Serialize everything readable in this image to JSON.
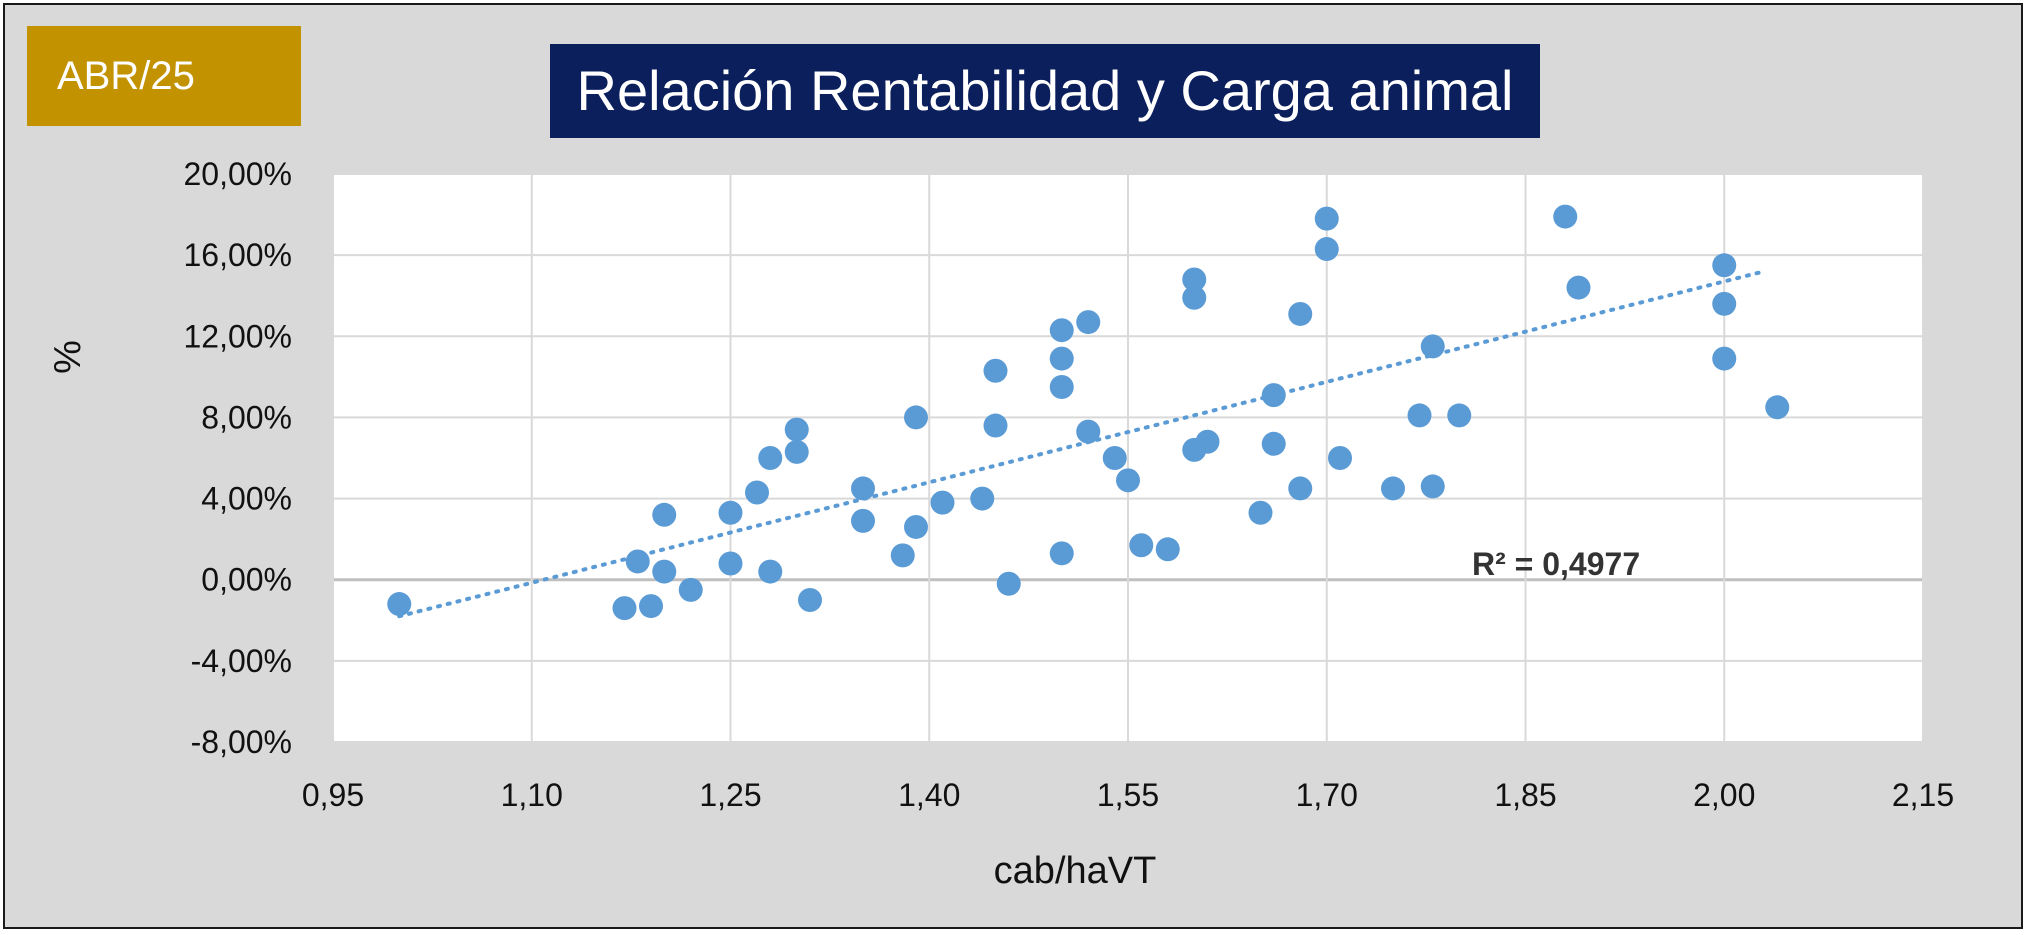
{
  "badge": {
    "label": "ABR/25"
  },
  "title": "Relación Rentabilidad y Carga animal",
  "colors": {
    "frame_bg": "#d9d9d9",
    "plot_bg": "#ffffff",
    "grid": "#d9d9d9",
    "zero_line": "#bfbfbf",
    "points": "#5b9bd5",
    "trendline": "#5b9bd5",
    "badge_bg": "#c39200",
    "title_bg": "#0b1f5c"
  },
  "chart_data": {
    "type": "scatter",
    "title": "Relación Rentabilidad y Carga animal",
    "xlabel": "cab/haVT",
    "ylabel": "%",
    "xlim": [
      0.95,
      2.15
    ],
    "ylim": [
      -8,
      20
    ],
    "x_ticks": [
      0.95,
      1.1,
      1.25,
      1.4,
      1.55,
      1.7,
      1.85,
      2.0,
      2.15
    ],
    "x_tick_labels": [
      "0,95",
      "1,10",
      "1,25",
      "1,40",
      "1,55",
      "1,70",
      "1,85",
      "2,00",
      "2,15"
    ],
    "y_ticks": [
      -8,
      -4,
      0,
      4,
      8,
      12,
      16,
      20
    ],
    "y_tick_labels": [
      "-8,00%",
      "-4,00%",
      "0,00%",
      "4,00%",
      "8,00%",
      "12,00%",
      "16,00%",
      "20,00%"
    ],
    "grid": true,
    "legend": "none",
    "points": [
      [
        1.0,
        -1.2
      ],
      [
        1.17,
        -1.4
      ],
      [
        1.18,
        0.9
      ],
      [
        1.19,
        -1.3
      ],
      [
        1.2,
        3.2
      ],
      [
        1.2,
        0.4
      ],
      [
        1.22,
        -0.5
      ],
      [
        1.25,
        0.8
      ],
      [
        1.25,
        3.3
      ],
      [
        1.27,
        4.3
      ],
      [
        1.28,
        6.0
      ],
      [
        1.28,
        0.4
      ],
      [
        1.3,
        6.3
      ],
      [
        1.3,
        7.4
      ],
      [
        1.31,
        -1.0
      ],
      [
        1.35,
        4.5
      ],
      [
        1.35,
        2.9
      ],
      [
        1.38,
        1.2
      ],
      [
        1.39,
        8.0
      ],
      [
        1.39,
        2.6
      ],
      [
        1.41,
        3.8
      ],
      [
        1.44,
        4.0
      ],
      [
        1.45,
        7.6
      ],
      [
        1.45,
        10.3
      ],
      [
        1.46,
        -0.2
      ],
      [
        1.5,
        12.3
      ],
      [
        1.5,
        10.9
      ],
      [
        1.5,
        9.5
      ],
      [
        1.5,
        1.3
      ],
      [
        1.52,
        12.7
      ],
      [
        1.52,
        7.3
      ],
      [
        1.54,
        6.0
      ],
      [
        1.55,
        4.9
      ],
      [
        1.56,
        1.7
      ],
      [
        1.58,
        1.5
      ],
      [
        1.6,
        14.8
      ],
      [
        1.6,
        13.9
      ],
      [
        1.6,
        6.4
      ],
      [
        1.61,
        6.8
      ],
      [
        1.65,
        3.3
      ],
      [
        1.66,
        9.1
      ],
      [
        1.66,
        6.7
      ],
      [
        1.68,
        13.1
      ],
      [
        1.68,
        4.5
      ],
      [
        1.7,
        17.8
      ],
      [
        1.7,
        16.3
      ],
      [
        1.71,
        6.0
      ],
      [
        1.75,
        4.5
      ],
      [
        1.77,
        8.1
      ],
      [
        1.78,
        11.5
      ],
      [
        1.78,
        4.6
      ],
      [
        1.8,
        8.1
      ],
      [
        1.88,
        17.9
      ],
      [
        1.89,
        14.4
      ],
      [
        2.0,
        15.5
      ],
      [
        2.0,
        13.6
      ],
      [
        2.0,
        10.9
      ],
      [
        2.04,
        8.5
      ]
    ],
    "trendline": {
      "type": "linear",
      "x_range": [
        1.0,
        2.03
      ],
      "y_at_start": -1.8,
      "y_at_end": 15.2,
      "label": "R² = 0,4977"
    }
  }
}
